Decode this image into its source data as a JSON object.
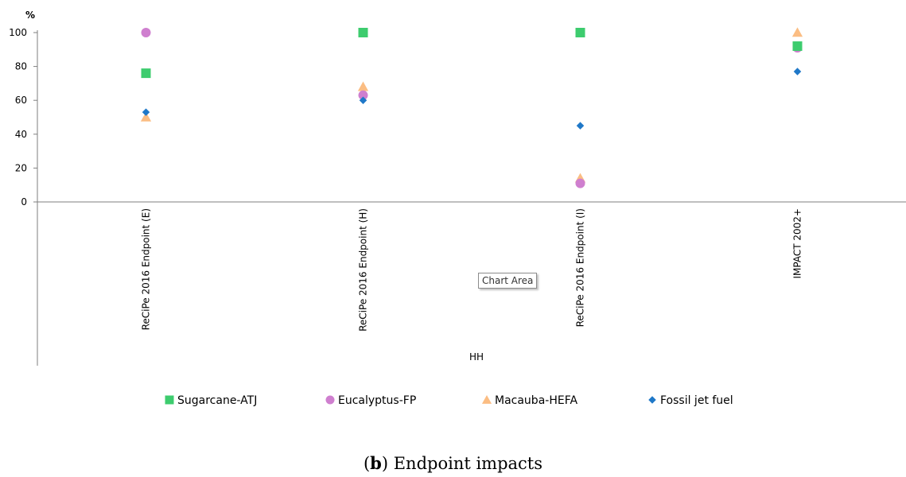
{
  "chart_data": {
    "type": "scatter",
    "ylabel": "%",
    "xlabel": "HH",
    "ylim": [
      0,
      100
    ],
    "yticks": [
      0,
      20,
      40,
      60,
      80,
      100
    ],
    "categories": [
      "ReCiPe 2016 Endpoint (E)",
      "ReCiPe 2016 Endpoint (H)",
      "ReCiPe 2016 Endpoint (I)",
      "IMPACT 2002+"
    ],
    "series": [
      {
        "name": "Sugarcane-ATJ",
        "marker": "square",
        "color": "#3dcc6e",
        "values": [
          76,
          100,
          100,
          92
        ]
      },
      {
        "name": "Eucalyptus-FP",
        "marker": "circle",
        "color": "#cf7fcf",
        "values": [
          100,
          63,
          11,
          91
        ]
      },
      {
        "name": "Macauba-HEFA",
        "marker": "triangle",
        "color": "#fbbd83",
        "values": [
          50,
          68,
          14,
          100
        ]
      },
      {
        "name": "Fossil jet fuel",
        "marker": "diamond",
        "color": "#1f78c8",
        "values": [
          53,
          60,
          45,
          77
        ]
      }
    ],
    "grid": false,
    "legend": "bottom"
  },
  "tooltip": "Chart Area",
  "caption": {
    "letter": "b",
    "text": "Endpoint impacts"
  }
}
